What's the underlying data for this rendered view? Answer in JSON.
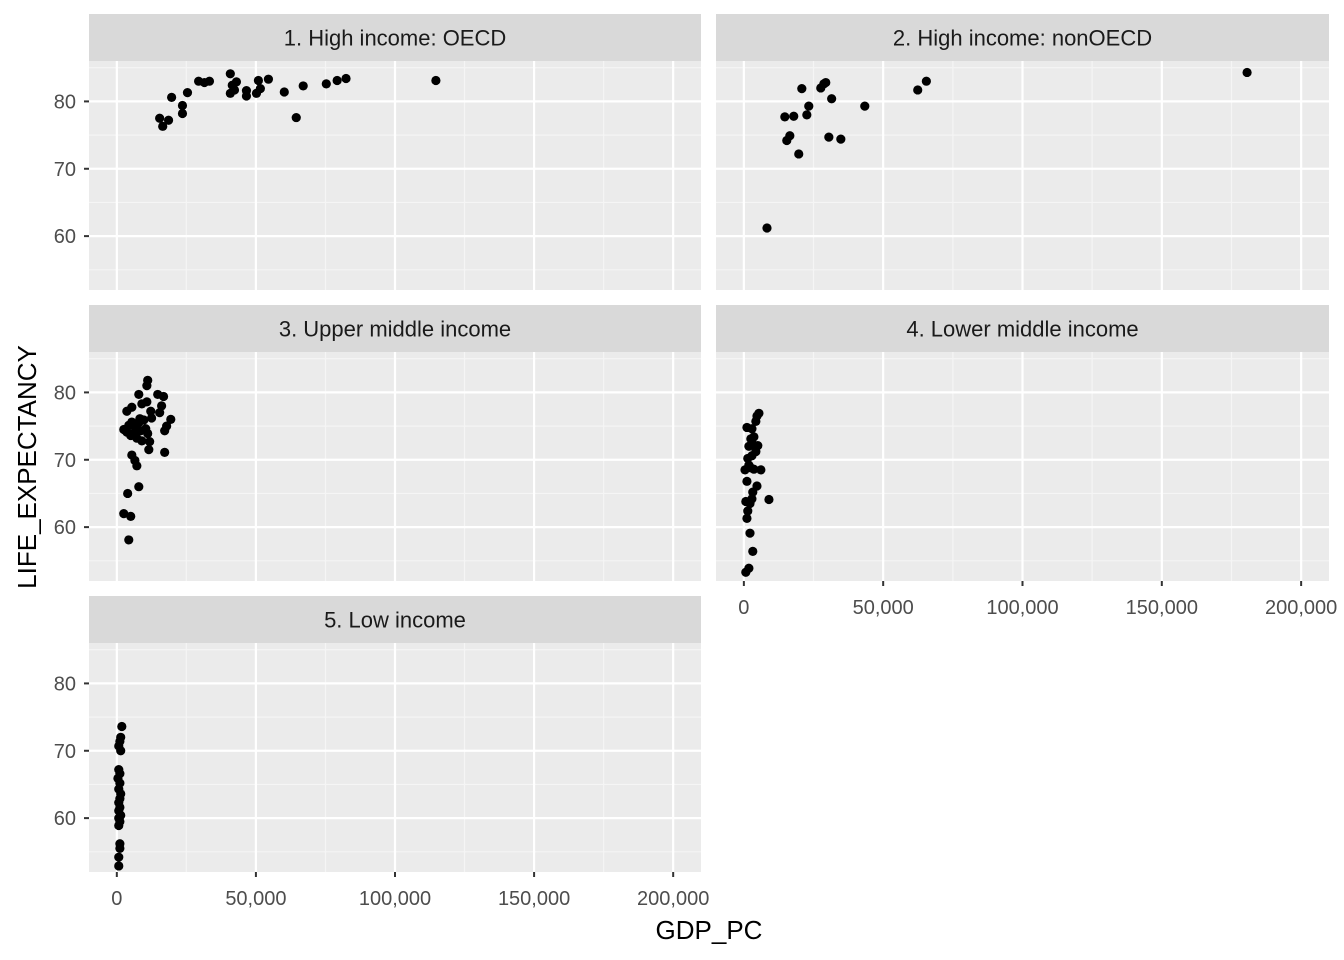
{
  "chart_data": {
    "type": "scatter",
    "title": "",
    "xlabel": "GDP_PC",
    "ylabel": "LIFE_EXPECTANCY",
    "xlim": [
      -10000,
      210000
    ],
    "ylim": [
      52,
      86
    ],
    "x_ticks": [
      0,
      50000,
      100000,
      150000,
      200000
    ],
    "x_tick_labels": [
      "0",
      "50,000",
      "100,000",
      "150,000",
      "200,000"
    ],
    "y_ticks": [
      60,
      70,
      80
    ],
    "y_tick_labels": [
      "60",
      "70",
      "80"
    ],
    "grid": true,
    "facet_by": "income group",
    "panels": [
      {
        "label": "1. High income: OECD",
        "points": [
          {
            "x": 15400,
            "y": 77.5
          },
          {
            "x": 16500,
            "y": 76.3
          },
          {
            "x": 18600,
            "y": 77.2
          },
          {
            "x": 19700,
            "y": 80.6
          },
          {
            "x": 23600,
            "y": 79.4
          },
          {
            "x": 23600,
            "y": 78.2
          },
          {
            "x": 25400,
            "y": 81.3
          },
          {
            "x": 29400,
            "y": 83.0
          },
          {
            "x": 31500,
            "y": 82.8
          },
          {
            "x": 33300,
            "y": 83.0
          },
          {
            "x": 40800,
            "y": 84.1
          },
          {
            "x": 40800,
            "y": 81.2
          },
          {
            "x": 41500,
            "y": 82.4
          },
          {
            "x": 42300,
            "y": 81.7
          },
          {
            "x": 43000,
            "y": 82.9
          },
          {
            "x": 46600,
            "y": 81.6
          },
          {
            "x": 46600,
            "y": 80.8
          },
          {
            "x": 50200,
            "y": 81.2
          },
          {
            "x": 51600,
            "y": 81.9
          },
          {
            "x": 50900,
            "y": 83.1
          },
          {
            "x": 54500,
            "y": 83.3
          },
          {
            "x": 60200,
            "y": 81.4
          },
          {
            "x": 64500,
            "y": 77.6
          },
          {
            "x": 67000,
            "y": 82.3
          },
          {
            "x": 75300,
            "y": 82.6
          },
          {
            "x": 79200,
            "y": 83.1
          },
          {
            "x": 82400,
            "y": 83.4
          },
          {
            "x": 114700,
            "y": 83.1
          }
        ]
      },
      {
        "label": "2. High income: nonOECD",
        "points": [
          {
            "x": 8300,
            "y": 61.2
          },
          {
            "x": 14700,
            "y": 77.7
          },
          {
            "x": 15400,
            "y": 74.2
          },
          {
            "x": 16500,
            "y": 74.9
          },
          {
            "x": 17900,
            "y": 77.8
          },
          {
            "x": 19700,
            "y": 72.2
          },
          {
            "x": 20800,
            "y": 81.9
          },
          {
            "x": 22600,
            "y": 78.0
          },
          {
            "x": 23300,
            "y": 79.3
          },
          {
            "x": 27600,
            "y": 82.0
          },
          {
            "x": 28700,
            "y": 82.6
          },
          {
            "x": 29400,
            "y": 82.8
          },
          {
            "x": 30500,
            "y": 74.7
          },
          {
            "x": 31500,
            "y": 80.4
          },
          {
            "x": 34800,
            "y": 74.4
          },
          {
            "x": 43400,
            "y": 79.3
          },
          {
            "x": 62400,
            "y": 81.7
          },
          {
            "x": 65500,
            "y": 83.0
          },
          {
            "x": 180600,
            "y": 84.3
          }
        ]
      },
      {
        "label": "3. Upper middle income",
        "points": [
          {
            "x": 2500,
            "y": 62.0
          },
          {
            "x": 4300,
            "y": 58.1
          },
          {
            "x": 5000,
            "y": 61.6
          },
          {
            "x": 3900,
            "y": 65.0
          },
          {
            "x": 7900,
            "y": 66.0
          },
          {
            "x": 5400,
            "y": 70.7
          },
          {
            "x": 6500,
            "y": 69.9
          },
          {
            "x": 7200,
            "y": 69.1
          },
          {
            "x": 2500,
            "y": 74.5
          },
          {
            "x": 3600,
            "y": 74.1
          },
          {
            "x": 4300,
            "y": 75.1
          },
          {
            "x": 5000,
            "y": 73.6
          },
          {
            "x": 5400,
            "y": 75.6
          },
          {
            "x": 6100,
            "y": 74.0
          },
          {
            "x": 6800,
            "y": 74.8
          },
          {
            "x": 7200,
            "y": 73.2
          },
          {
            "x": 7900,
            "y": 75.5
          },
          {
            "x": 8300,
            "y": 76.1
          },
          {
            "x": 8600,
            "y": 74.3
          },
          {
            "x": 9000,
            "y": 72.8
          },
          {
            "x": 9700,
            "y": 75.9
          },
          {
            "x": 10400,
            "y": 74.6
          },
          {
            "x": 11100,
            "y": 73.9
          },
          {
            "x": 11500,
            "y": 71.5
          },
          {
            "x": 11800,
            "y": 72.7
          },
          {
            "x": 12500,
            "y": 76.2
          },
          {
            "x": 3600,
            "y": 77.2
          },
          {
            "x": 5400,
            "y": 77.8
          },
          {
            "x": 7900,
            "y": 79.7
          },
          {
            "x": 9000,
            "y": 78.3
          },
          {
            "x": 10800,
            "y": 78.6
          },
          {
            "x": 10800,
            "y": 81.0
          },
          {
            "x": 11100,
            "y": 81.8
          },
          {
            "x": 12200,
            "y": 77.2
          },
          {
            "x": 14700,
            "y": 79.7
          },
          {
            "x": 15400,
            "y": 77.0
          },
          {
            "x": 16100,
            "y": 78.0
          },
          {
            "x": 16800,
            "y": 79.4
          },
          {
            "x": 17200,
            "y": 71.1
          },
          {
            "x": 17200,
            "y": 74.3
          },
          {
            "x": 17900,
            "y": 75.0
          },
          {
            "x": 19400,
            "y": 76.0
          }
        ]
      },
      {
        "label": "4. Lower middle income",
        "points": [
          {
            "x": 700,
            "y": 53.3
          },
          {
            "x": 1800,
            "y": 53.9
          },
          {
            "x": 3200,
            "y": 56.4
          },
          {
            "x": 2200,
            "y": 59.1
          },
          {
            "x": 1100,
            "y": 61.3
          },
          {
            "x": 1400,
            "y": 62.4
          },
          {
            "x": 700,
            "y": 63.8
          },
          {
            "x": 2200,
            "y": 63.5
          },
          {
            "x": 2900,
            "y": 64.2
          },
          {
            "x": 3200,
            "y": 65.2
          },
          {
            "x": 9000,
            "y": 64.1
          },
          {
            "x": 4700,
            "y": 66.1
          },
          {
            "x": 1100,
            "y": 66.8
          },
          {
            "x": 400,
            "y": 68.5
          },
          {
            "x": 1800,
            "y": 69.2
          },
          {
            "x": 2500,
            "y": 68.8
          },
          {
            "x": 3600,
            "y": 68.6
          },
          {
            "x": 6100,
            "y": 68.5
          },
          {
            "x": 1400,
            "y": 70.2
          },
          {
            "x": 2900,
            "y": 70.6
          },
          {
            "x": 4300,
            "y": 71.2
          },
          {
            "x": 1800,
            "y": 72.0
          },
          {
            "x": 3200,
            "y": 72.3
          },
          {
            "x": 5000,
            "y": 72.1
          },
          {
            "x": 2500,
            "y": 73.1
          },
          {
            "x": 3600,
            "y": 73.4
          },
          {
            "x": 1100,
            "y": 74.8
          },
          {
            "x": 2900,
            "y": 74.6
          },
          {
            "x": 4300,
            "y": 75.7
          },
          {
            "x": 5400,
            "y": 76.9
          },
          {
            "x": 4700,
            "y": 76.5
          }
        ]
      },
      {
        "label": "5. Low income",
        "points": [
          {
            "x": 700,
            "y": 52.9
          },
          {
            "x": 700,
            "y": 54.2
          },
          {
            "x": 1100,
            "y": 55.5
          },
          {
            "x": 1100,
            "y": 56.2
          },
          {
            "x": 700,
            "y": 58.9
          },
          {
            "x": 1100,
            "y": 59.5
          },
          {
            "x": 700,
            "y": 60.0
          },
          {
            "x": 1400,
            "y": 60.4
          },
          {
            "x": 700,
            "y": 61.1
          },
          {
            "x": 1100,
            "y": 61.6
          },
          {
            "x": 700,
            "y": 62.3
          },
          {
            "x": 1100,
            "y": 62.9
          },
          {
            "x": 1400,
            "y": 63.6
          },
          {
            "x": 700,
            "y": 64.3
          },
          {
            "x": 1100,
            "y": 65.2
          },
          {
            "x": 400,
            "y": 65.9
          },
          {
            "x": 1100,
            "y": 66.6
          },
          {
            "x": 700,
            "y": 67.2
          },
          {
            "x": 1400,
            "y": 70.0
          },
          {
            "x": 700,
            "y": 70.7
          },
          {
            "x": 1100,
            "y": 71.4
          },
          {
            "x": 1400,
            "y": 72.0
          },
          {
            "x": 1800,
            "y": 73.6
          }
        ]
      }
    ]
  },
  "colors": {
    "panel_background": "#ebebeb",
    "strip_background": "#d9d9d9",
    "grid_major": "#ffffff",
    "grid_minor": "#f5f5f5",
    "point": "#000000",
    "tick_text": "#4d4d4d",
    "tick_mark": "#333333"
  }
}
